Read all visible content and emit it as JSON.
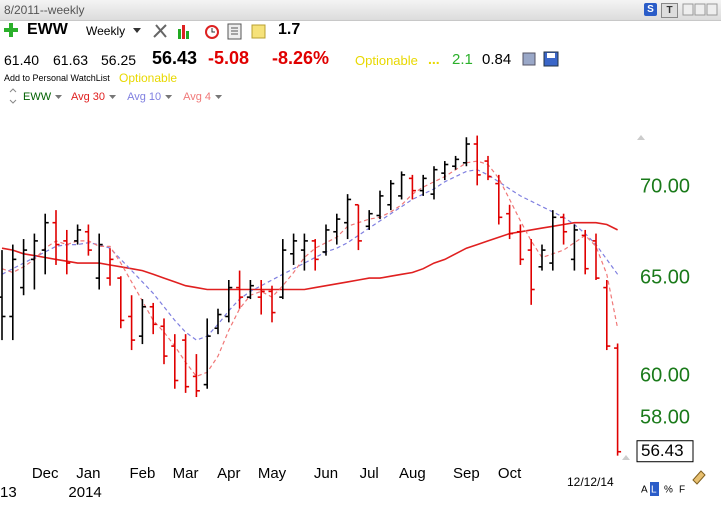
{
  "header": {
    "period": "8/2011--weekly",
    "tab_s": "S",
    "tab_t": "T",
    "symbol": "EWW",
    "interval": "Weekly",
    "rank": "1.7",
    "open": "61.40",
    "high": "61.63",
    "low": "56.25",
    "last": "56.43",
    "change": "-5.08",
    "change_pct": "-8.26%",
    "optionable": "Optionable",
    "dots": "...",
    "stat1": "2.1",
    "stat2": "0.84",
    "watchlist": "Add to Personal WatchList",
    "optionable2": "Optionable"
  },
  "footer": {
    "a": "A",
    "l": "L",
    "pct": "%",
    "f": "F"
  },
  "chart_data": {
    "type": "ohlc",
    "name": "EWW",
    "date_label": "12/12/14",
    "categories": [
      null,
      null,
      null,
      null,
      "Dec",
      null,
      null,
      null,
      "Jan",
      null,
      null,
      null,
      null,
      "Feb",
      null,
      null,
      null,
      "Mar",
      null,
      null,
      null,
      "Apr",
      null,
      null,
      null,
      "May",
      null,
      null,
      null,
      null,
      "Jun",
      null,
      null,
      null,
      "Jul",
      null,
      null,
      null,
      "Aug",
      null,
      null,
      null,
      null,
      "Sep",
      null,
      null,
      null,
      "Oct",
      null,
      null,
      null,
      null,
      null,
      null,
      null,
      null,
      null,
      null
    ],
    "category_years": [
      "13",
      null,
      null,
      null,
      null,
      null,
      null,
      null,
      "2014",
      null,
      null,
      null,
      null,
      null,
      null,
      null,
      null,
      null,
      null,
      null,
      null,
      null,
      null,
      null,
      null,
      null,
      null,
      null,
      null,
      null,
      null,
      null,
      null,
      null,
      null,
      null,
      null,
      null,
      null,
      null,
      null,
      null,
      null,
      null,
      null,
      null,
      null,
      null,
      null,
      null,
      null,
      null,
      null,
      null,
      null,
      null,
      null,
      null
    ],
    "open": [
      64,
      63,
      64.5,
      66,
      66.5,
      68,
      67,
      67,
      67.5,
      65,
      65,
      65,
      63,
      62,
      63.5,
      62.5,
      61.5,
      61.8,
      60,
      59.6,
      62.4,
      63,
      64.5,
      64,
      64,
      64.3,
      64,
      66.3,
      66.5,
      67,
      66.4,
      67.5,
      68,
      69,
      67.8,
      68.4,
      69,
      69.5,
      70.5,
      69.8,
      69.6,
      70.8,
      71.2,
      71.4,
      72.5,
      71.5,
      70.2,
      68.5,
      67.5,
      66.5,
      65.6,
      65.8,
      68.3,
      66,
      67.3,
      67,
      64.5,
      61.4
    ],
    "high": [
      66.5,
      66.8,
      67.1,
      67.4,
      68.5,
      68.7,
      67.6,
      67.9,
      67.9,
      67.4,
      66.6,
      65.1,
      64.1,
      63.9,
      63.7,
      62.9,
      62.1,
      62.1,
      61.1,
      62.9,
      63.4,
      64.9,
      65.4,
      64.9,
      64.9,
      64.6,
      67.1,
      67.4,
      67.4,
      67.1,
      67.9,
      68.5,
      69.6,
      69,
      68.7,
      69.8,
      70.4,
      70.9,
      70.7,
      70.7,
      71.2,
      71.5,
      71.8,
      72.9,
      73,
      71.8,
      70.7,
      69,
      67.9,
      67.1,
      66.8,
      68.7,
      68.5,
      67.9,
      67.6,
      67.4,
      64.9,
      61.63
    ],
    "low": [
      61.8,
      61.8,
      64.1,
      64.4,
      65.2,
      65.7,
      65.2,
      66.8,
      66.2,
      64.4,
      64.6,
      62.4,
      61.3,
      61.6,
      62.1,
      60.6,
      59.4,
      59.2,
      59,
      59.4,
      62.1,
      62.7,
      63.4,
      63.9,
      63.1,
      62.7,
      63.9,
      65.7,
      65.4,
      65.4,
      66.2,
      66.8,
      67.1,
      66.5,
      67.6,
      68.2,
      68.7,
      69.3,
      69.3,
      69.5,
      69.3,
      70.4,
      71,
      71.2,
      70.1,
      70.4,
      67.9,
      67.1,
      65.7,
      63.6,
      65.4,
      65.4,
      66.8,
      65.4,
      65.2,
      64.9,
      61.3,
      56.25
    ],
    "close": [
      63,
      66,
      66.5,
      67,
      68,
      66.8,
      65.8,
      67.6,
      66.5,
      66.8,
      66,
      62.8,
      61.8,
      63.5,
      62.6,
      61,
      59.8,
      59.5,
      59.3,
      62,
      63.1,
      64.5,
      64,
      64.6,
      64.3,
      63.2,
      66.5,
      67,
      67,
      66,
      67.6,
      68.2,
      69.3,
      67,
      68.5,
      69.5,
      70.2,
      70.7,
      69.8,
      70.5,
      71,
      71.3,
      71.6,
      72.5,
      70.7,
      70.6,
      68.3,
      67.4,
      66,
      64.4,
      66.5,
      68.3,
      67.5,
      67.6,
      65.5,
      65,
      61.5,
      56.43
    ],
    "up_color": "#000000",
    "down_color": "#e00000",
    "series": [
      {
        "name": "Avg 30",
        "color": "#e02020",
        "dashed": false,
        "values": [
          66.6,
          66.5,
          66.3,
          66.2,
          66.1,
          66.0,
          65.9,
          65.8,
          65.8,
          65.8,
          65.7,
          65.6,
          65.5,
          65.4,
          65.2,
          65.0,
          64.8,
          64.6,
          64.5,
          64.4,
          64.4,
          64.4,
          64.4,
          64.4,
          64.4,
          64.4,
          64.4,
          64.4,
          64.4,
          64.5,
          64.6,
          64.7,
          64.8,
          64.9,
          65.0,
          65.0,
          65.1,
          65.2,
          65.3,
          65.5,
          65.8,
          66.0,
          66.3,
          66.6,
          66.8,
          67.0,
          67.2,
          67.4,
          67.5,
          67.6,
          67.7,
          67.8,
          67.9,
          68.0,
          68.0,
          68.0,
          67.9,
          67.6
        ]
      },
      {
        "name": "Avg 10",
        "color": "#7f7fe0",
        "dashed": true,
        "values": [
          65.2,
          65.5,
          65.8,
          66.1,
          66.4,
          66.7,
          66.8,
          66.8,
          66.9,
          66.8,
          66.6,
          66.0,
          65.4,
          64.8,
          64.2,
          63.5,
          62.8,
          62.2,
          61.8,
          62.0,
          62.6,
          63.3,
          63.9,
          64.3,
          64.6,
          64.9,
          65.2,
          65.5,
          65.8,
          66.1,
          66.4,
          66.6,
          66.9,
          67.3,
          67.7,
          68.1,
          68.5,
          68.9,
          69.3,
          69.6,
          69.9,
          70.3,
          70.6,
          70.9,
          71.0,
          70.7,
          70.3,
          69.9,
          69.5,
          69.2,
          68.9,
          68.6,
          68.3,
          67.9,
          67.4,
          66.8,
          66.0,
          65.2
        ]
      },
      {
        "name": "Avg 4",
        "color": "#f07878",
        "dashed": true,
        "values": [
          65.5,
          65.3,
          65.6,
          66.0,
          66.6,
          67.0,
          66.8,
          67.0,
          67.0,
          66.7,
          66.7,
          65.8,
          64.8,
          63.8,
          62.8,
          62.2,
          61.5,
          60.7,
          60.0,
          60.2,
          61.0,
          62.3,
          63.4,
          64.1,
          64.3,
          64.0,
          64.6,
          65.3,
          66.1,
          66.6,
          66.9,
          67.2,
          67.8,
          68.0,
          68.2,
          68.3,
          68.6,
          69.0,
          69.6,
          70.0,
          70.3,
          70.6,
          71.0,
          71.4,
          71.5,
          71.3,
          70.5,
          69.3,
          68.1,
          67.0,
          66.1,
          66.3,
          66.5,
          66.9,
          67.3,
          66.7,
          65.2,
          62.4
        ]
      }
    ],
    "ylim": [
      55.96,
      74.84
    ],
    "log_scale": true,
    "grid": false,
    "axis_color": "#1a7a1a",
    "yticks": [
      {
        "value": 58,
        "label": "58.00"
      },
      {
        "value": 60,
        "label": "60.00"
      },
      {
        "value": 65,
        "label": "65.00"
      },
      {
        "value": 70,
        "label": "70.00"
      }
    ]
  }
}
